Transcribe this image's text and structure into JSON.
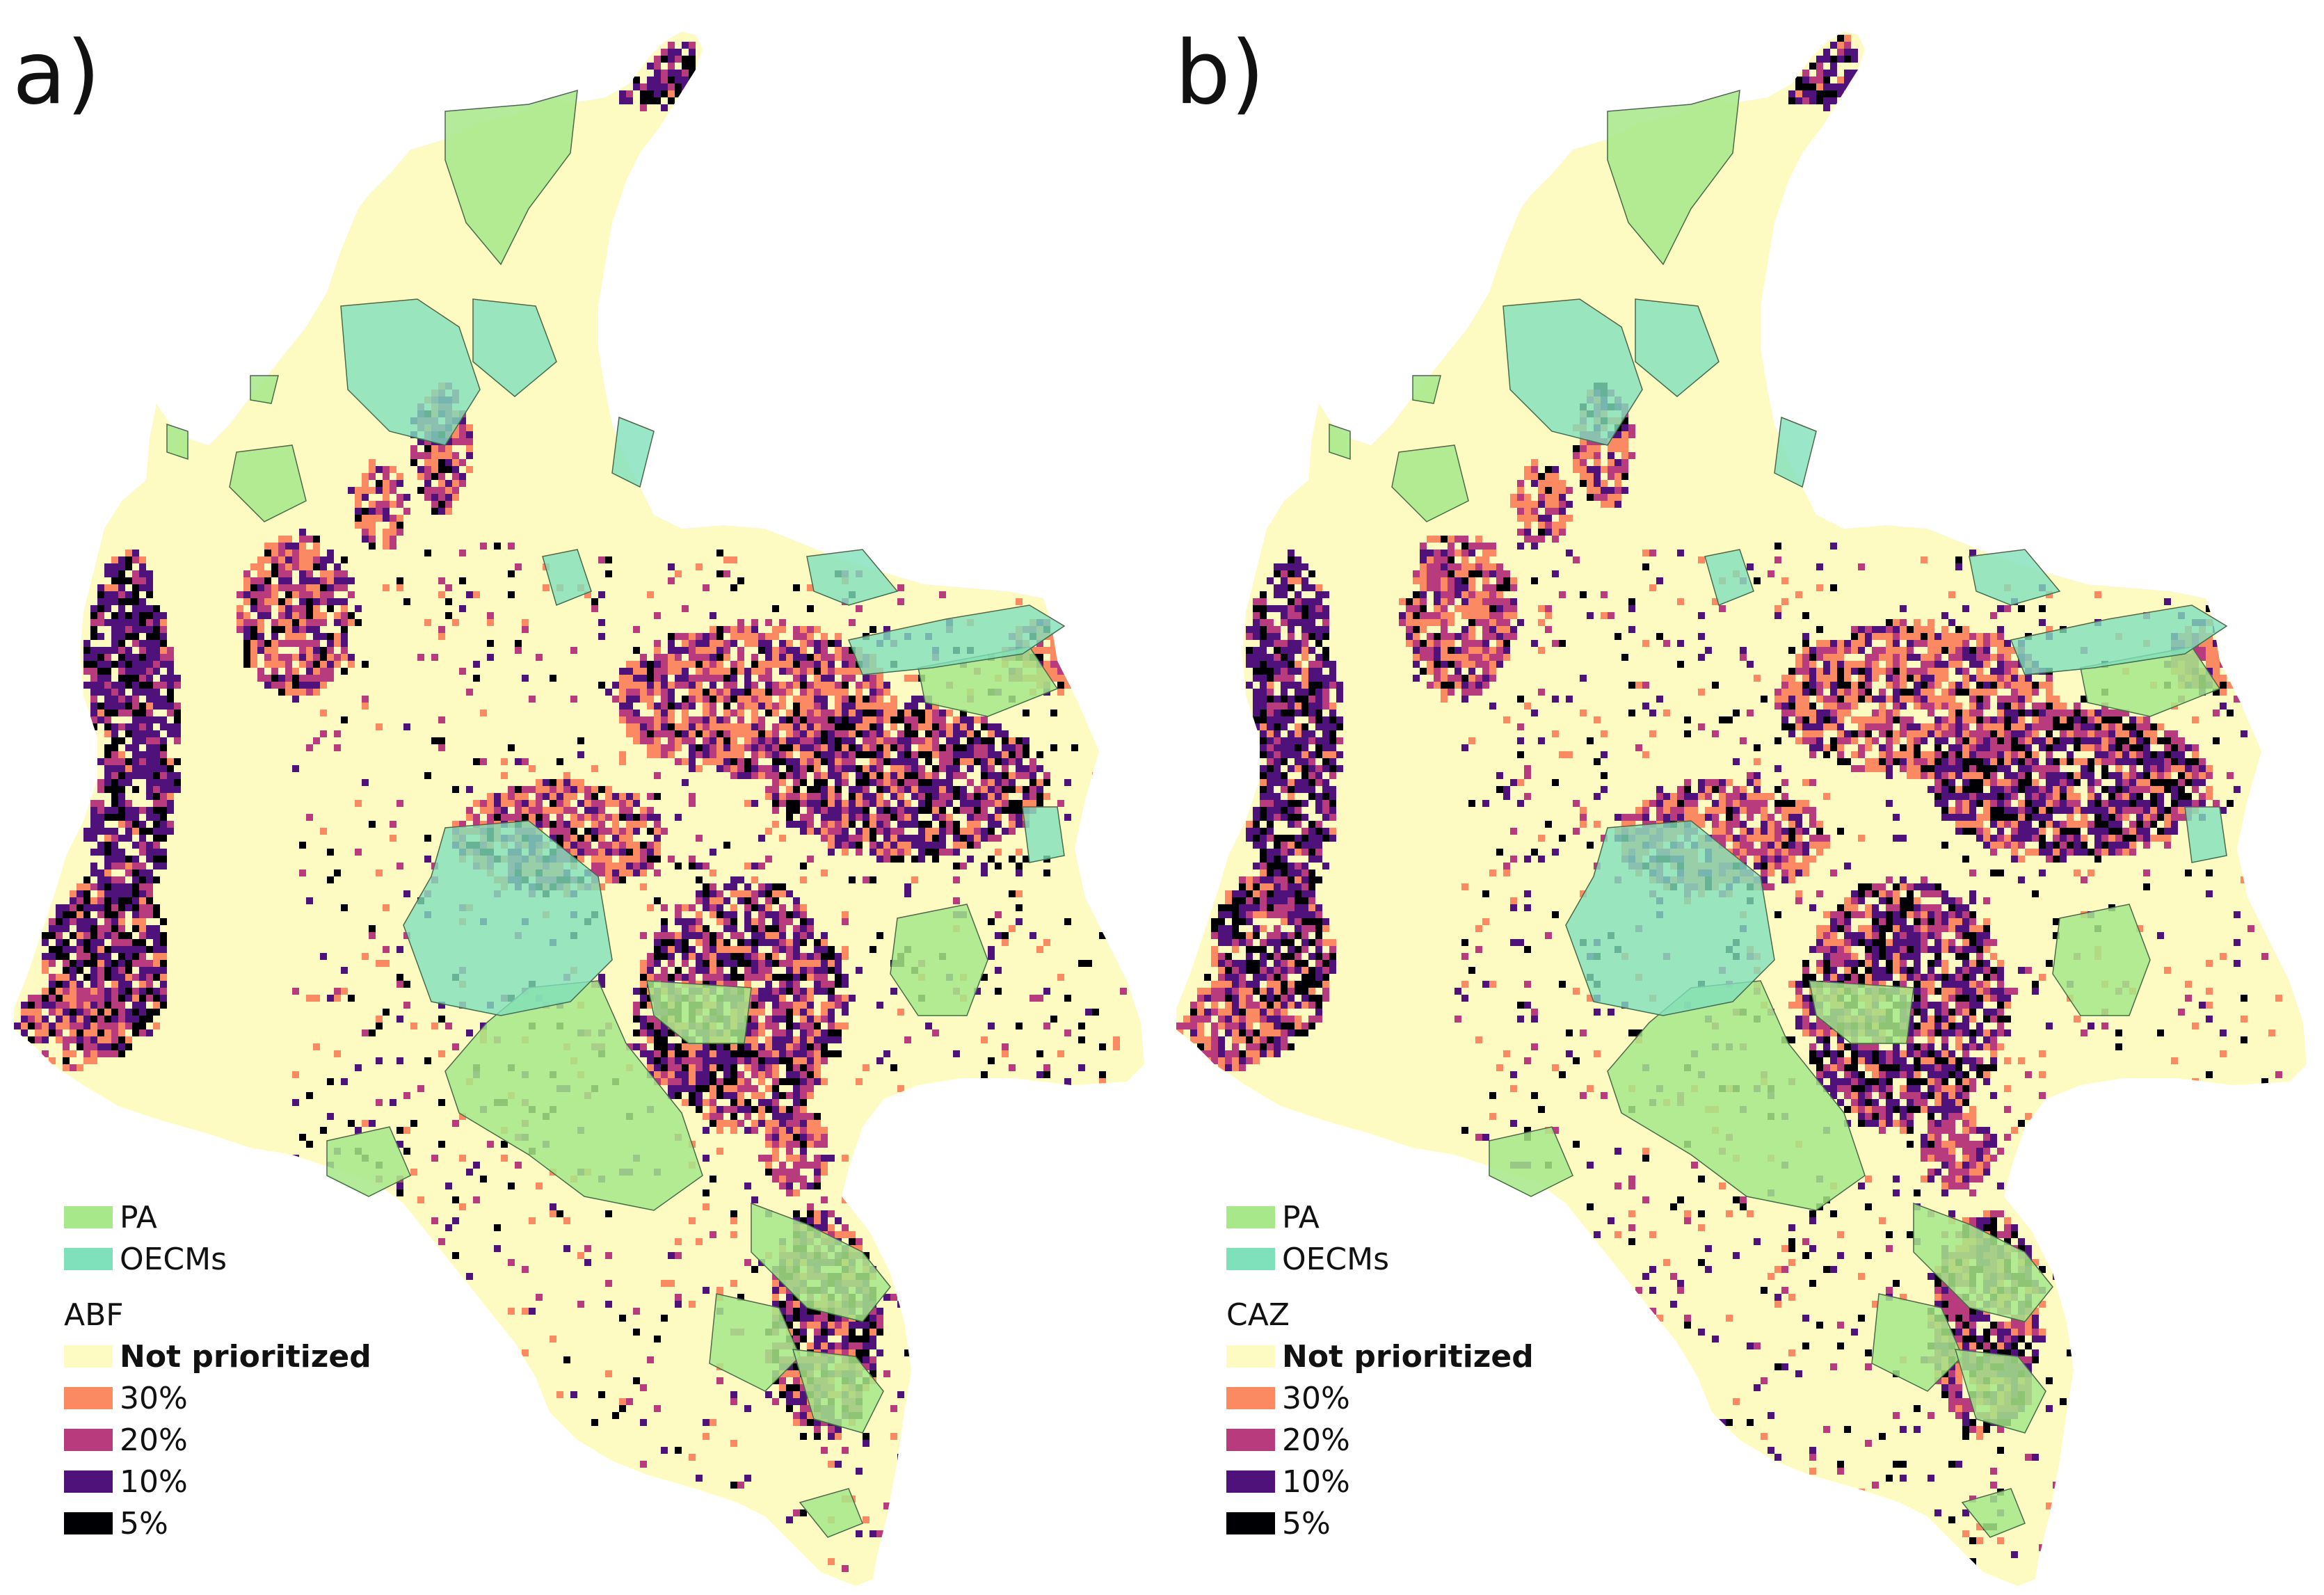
{
  "panels": [
    {
      "label": "a)",
      "method": "ABF"
    },
    {
      "label": "b)",
      "method": "CAZ"
    }
  ],
  "legend": {
    "areas": [
      {
        "label": "PA",
        "color": "#a6e88a"
      },
      {
        "label": "OECMs",
        "color": "#7fe0bc"
      }
    ],
    "priority": [
      {
        "label": "Not prioritized",
        "color": "#fdfbc2"
      },
      {
        "label": "30%",
        "color": "#fb8a62"
      },
      {
        "label": "20%",
        "color": "#b83c7d"
      },
      {
        "label": "10%",
        "color": "#4f127b"
      },
      {
        "label": "5%",
        "color": "#000004"
      }
    ]
  },
  "colors": {
    "base": "#fdfbc2",
    "p30": "#fb8a62",
    "p20": "#b83c7d",
    "p10": "#4f127b",
    "p5": "#000004",
    "pa": "#a6e88a",
    "oecm": "#7fe0bc",
    "outline": "#4a6a4a"
  }
}
